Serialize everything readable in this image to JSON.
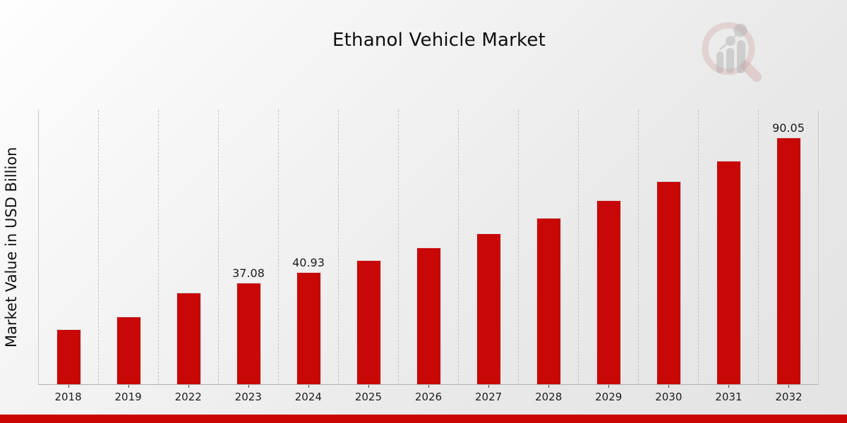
{
  "header": {
    "title": "Ethanol Vehicle Market"
  },
  "y_axis": {
    "label": "Market Value in USD Billion"
  },
  "chart_data": {
    "type": "bar",
    "title": "Ethanol Vehicle Market",
    "xlabel": "",
    "ylabel": "Market Value in USD Billion",
    "categories": [
      "2018",
      "2019",
      "2022",
      "2023",
      "2024",
      "2025",
      "2026",
      "2027",
      "2028",
      "2029",
      "2030",
      "2031",
      "2032"
    ],
    "values": [
      20.1,
      24.7,
      33.5,
      37.08,
      40.93,
      45.2,
      49.9,
      55.0,
      60.7,
      67.0,
      74.0,
      81.6,
      90.05
    ],
    "data_labels": {
      "2023": "37.08",
      "2024": "40.93",
      "2032": "90.05"
    },
    "ylim": [
      0,
      100
    ],
    "grid": "vertical-dashed",
    "legend_position": "none",
    "bar_color": "#c80707",
    "tick_color": "#4a4a4a"
  },
  "footer": {
    "accent_bar_color": "#cb0404"
  },
  "logo": {
    "name": "market-research-future-watermark",
    "ring_color": "#c98f8f",
    "bars_color": "#9a9a9a"
  }
}
